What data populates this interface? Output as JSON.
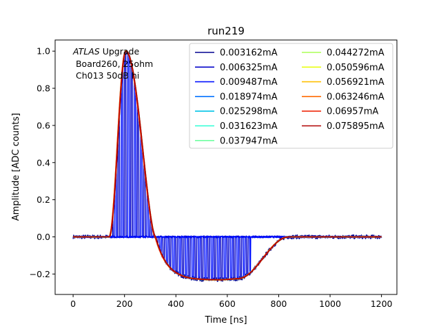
{
  "chart_data": {
    "type": "line",
    "title": "run219",
    "xlabel": "Time [ns]",
    "ylabel": "Amplitude [ADC counts]",
    "xlim": [
      -70,
      1260
    ],
    "ylim": [
      -0.31,
      1.06
    ],
    "xticks": [
      0,
      200,
      400,
      600,
      800,
      1000,
      1200
    ],
    "yticks": [
      -0.2,
      0.0,
      0.2,
      0.4,
      0.6,
      0.8,
      1.0
    ],
    "xtick_labels": [
      "0",
      "200",
      "400",
      "600",
      "800",
      "1000",
      "1200"
    ],
    "ytick_labels": [
      "−0.2",
      "0.0",
      "0.2",
      "0.4",
      "0.6",
      "0.8",
      "1.0"
    ],
    "legend_placement": "upper-right, 2 columns",
    "annotation": {
      "italic": "ATLAS",
      "rest": " Upgrade",
      "line2": " Board260, 25ohm",
      "line3": " Ch013 50dB hi"
    },
    "pulse_model": {
      "baseline_end_ns": 140,
      "peak_ns": 205,
      "peak_value": 1.0,
      "zero_cross_ns": 320,
      "undershoot_value": -0.225,
      "undershoot_flat_ns": [
        470,
        640
      ],
      "recovery_end_ns": 840,
      "end_ns": 1200
    },
    "series": [
      {
        "name": "0.003162mA",
        "color": "#00008f",
        "current_mA": 0.003162
      },
      {
        "name": "0.006325mA",
        "color": "#0000c8",
        "current_mA": 0.006325
      },
      {
        "name": "0.009487mA",
        "color": "#0010ff",
        "current_mA": 0.009487
      },
      {
        "name": "0.018974mA",
        "color": "#0070ff",
        "current_mA": 0.018974
      },
      {
        "name": "0.025298mA",
        "color": "#00c4e6",
        "current_mA": 0.025298
      },
      {
        "name": "0.031623mA",
        "color": "#2affd5",
        "current_mA": 0.031623
      },
      {
        "name": "0.037947mA",
        "color": "#6fffa0",
        "current_mA": 0.037947
      },
      {
        "name": "0.044272mA",
        "color": "#aaff55",
        "current_mA": 0.044272
      },
      {
        "name": "0.050596mA",
        "color": "#e8ff10",
        "current_mA": 0.050596
      },
      {
        "name": "0.056921mA",
        "color": "#ffbf00",
        "current_mA": 0.056921
      },
      {
        "name": "0.063246mA",
        "color": "#ff6a00",
        "current_mA": 0.063246
      },
      {
        "name": "0.06957mA",
        "color": "#ef2a0c",
        "current_mA": 0.06957
      },
      {
        "name": "0.075895mA",
        "color": "#b00000",
        "current_mA": 0.075895
      }
    ]
  }
}
